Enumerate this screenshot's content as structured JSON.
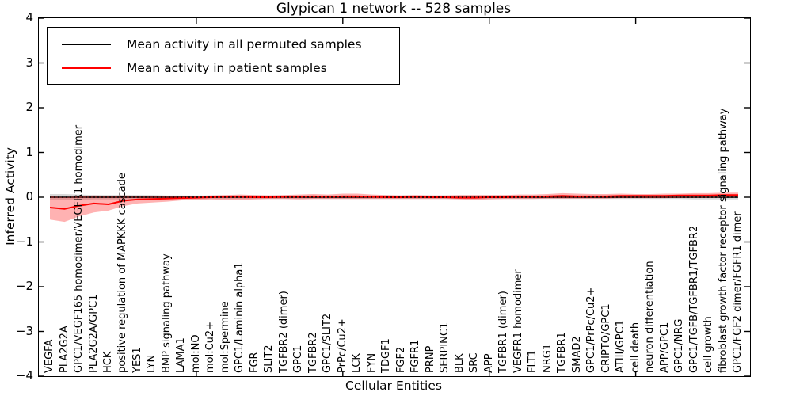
{
  "figure": {
    "title": "Glypican 1 network -- 528 samples",
    "xlabel": "Cellular Entities",
    "ylabel": "Inferred Activity"
  },
  "legend": {
    "entries": [
      {
        "label": "Mean activity in all permuted samples",
        "color": "#000000"
      },
      {
        "label": "Mean activity in patient samples",
        "color": "#ff0000"
      }
    ]
  },
  "chart_data": {
    "type": "line",
    "title": "Glypican 1 network -- 528 samples",
    "xlabel": "Cellular Entities",
    "ylabel": "Inferred Activity",
    "ylim": [
      -4,
      4
    ],
    "yticks": [
      4,
      3,
      2,
      1,
      0,
      -1,
      -2,
      -3,
      -4
    ],
    "ytick_labels": [
      "4",
      "3",
      "2",
      "1",
      "0",
      "−1",
      "−2",
      "−3",
      "−4"
    ],
    "grid": false,
    "legend_position": "upper left",
    "zero_line": {
      "style": "dotted",
      "color": "#000000",
      "y": 0
    },
    "categories": [
      "VEGFA",
      "PLA2G2A",
      "GPC1/VEGF165 homodimer/VEGFR1 homodimer",
      "PLA2G2A/GPC1",
      "HCK",
      "positive regulation of MAPKKK cascade",
      "YES1",
      "LYN",
      "BMP signaling pathway",
      "LAMA1",
      "mol:NO",
      "mol:Cu2+",
      "mol:Spermine",
      "GPC1/Laminin alpha1",
      "FGR",
      "SLIT2",
      "TGFBR2 (dimer)",
      "GPC1",
      "TGFBR2",
      "GPC1/SLIT2",
      "PrPc/Cu2+",
      "LCK",
      "FYN",
      "TDGF1",
      "FGF2",
      "FGFR1",
      "PRNP",
      "SERPINC1",
      "BLK",
      "SRC",
      "APP",
      "TGFBR1 (dimer)",
      "VEGFR1 homodimer",
      "FLT1",
      "NRG1",
      "TGFBR1",
      "SMAD2",
      "GPC1/PrPc/Cu2+",
      "CRIPTO/GPC1",
      "ATIII/GPC1",
      "cell death",
      "neuron differentiation",
      "APP/GPC1",
      "GPC1/NRG",
      "GPC1/TGFB/TGFBR1/TGFBR2",
      "cell growth",
      "fibroblast growth factor receptor signaling pathway",
      "GPC1/FGF2 dimer/FGFR1 dimer"
    ],
    "series": [
      {
        "name": "Mean activity in all permuted samples",
        "color": "#000000",
        "line_style": "solid",
        "band_color": "rgba(0,0,0,0.15)",
        "values": [
          0,
          0,
          0,
          0,
          0,
          0,
          0,
          0,
          0,
          0,
          0,
          0,
          0,
          0,
          0,
          0,
          0,
          0,
          0,
          0,
          0,
          0,
          0,
          0,
          0,
          0,
          0,
          0,
          0,
          0,
          0,
          0,
          0,
          0,
          0,
          0,
          0,
          0,
          0,
          0,
          0,
          0,
          0,
          0,
          0,
          0,
          0,
          0
        ],
        "band_upper": [
          0.07,
          0.07,
          0.06,
          0.05,
          0.05,
          0.05,
          0.05,
          0.05,
          0.04,
          0.04,
          0.04,
          0.04,
          0.04,
          0.04,
          0.04,
          0.04,
          0.04,
          0.04,
          0.04,
          0.04,
          0.04,
          0.04,
          0.04,
          0.04,
          0.04,
          0.04,
          0.04,
          0.04,
          0.04,
          0.04,
          0.04,
          0.04,
          0.04,
          0.04,
          0.04,
          0.04,
          0.04,
          0.04,
          0.04,
          0.04,
          0.04,
          0.04,
          0.04,
          0.04,
          0.05,
          0.05,
          0.05,
          0.05
        ],
        "band_lower": [
          -0.07,
          -0.07,
          -0.06,
          -0.05,
          -0.05,
          -0.05,
          -0.05,
          -0.05,
          -0.04,
          -0.04,
          -0.04,
          -0.04,
          -0.04,
          -0.04,
          -0.04,
          -0.04,
          -0.04,
          -0.04,
          -0.04,
          -0.04,
          -0.04,
          -0.04,
          -0.04,
          -0.04,
          -0.04,
          -0.04,
          -0.04,
          -0.04,
          -0.04,
          -0.04,
          -0.04,
          -0.04,
          -0.04,
          -0.04,
          -0.04,
          -0.04,
          -0.04,
          -0.04,
          -0.04,
          -0.04,
          -0.04,
          -0.04,
          -0.04,
          -0.04,
          -0.05,
          -0.05,
          -0.05,
          -0.05
        ]
      },
      {
        "name": "Mean activity in patient samples",
        "color": "#ff0000",
        "line_style": "solid",
        "band_color": "rgba(255,0,0,0.30)",
        "values": [
          -0.23,
          -0.26,
          -0.19,
          -0.14,
          -0.16,
          -0.08,
          -0.05,
          -0.04,
          -0.03,
          -0.02,
          -0.01,
          0,
          0.01,
          0.01,
          0,
          0,
          0.01,
          0.01,
          0.02,
          0.01,
          0.02,
          0.02,
          0.01,
          0,
          0,
          0.01,
          0,
          0,
          -0.01,
          -0.01,
          0,
          0,
          0.01,
          0.01,
          0.02,
          0.03,
          0.02,
          0.02,
          0.02,
          0.03,
          0.03,
          0.03,
          0.03,
          0.04,
          0.04,
          0.04,
          0.05,
          0.05
        ],
        "band_upper": [
          0.02,
          0,
          0.02,
          0.04,
          0.03,
          0.04,
          0.03,
          0.03,
          0.02,
          0.02,
          0.03,
          0.04,
          0.05,
          0.06,
          0.05,
          0.04,
          0.05,
          0.06,
          0.07,
          0.06,
          0.08,
          0.08,
          0.06,
          0.05,
          0.04,
          0.05,
          0.04,
          0.04,
          0.05,
          0.05,
          0.05,
          0.05,
          0.06,
          0.06,
          0.07,
          0.09,
          0.08,
          0.07,
          0.07,
          0.08,
          0.07,
          0.07,
          0.08,
          0.08,
          0.09,
          0.09,
          0.1,
          0.1
        ],
        "band_lower": [
          -0.5,
          -0.55,
          -0.43,
          -0.34,
          -0.3,
          -0.2,
          -0.14,
          -0.12,
          -0.1,
          -0.07,
          -0.06,
          -0.05,
          -0.06,
          -0.06,
          -0.05,
          -0.04,
          -0.04,
          -0.05,
          -0.04,
          -0.04,
          -0.04,
          -0.04,
          -0.04,
          -0.04,
          -0.04,
          -0.04,
          -0.04,
          -0.04,
          -0.05,
          -0.06,
          -0.05,
          -0.04,
          -0.04,
          -0.04,
          -0.03,
          -0.03,
          -0.03,
          -0.03,
          -0.03,
          -0.02,
          -0.02,
          -0.02,
          -0.02,
          -0.01,
          -0.01,
          -0.01,
          0,
          0
        ]
      }
    ]
  }
}
